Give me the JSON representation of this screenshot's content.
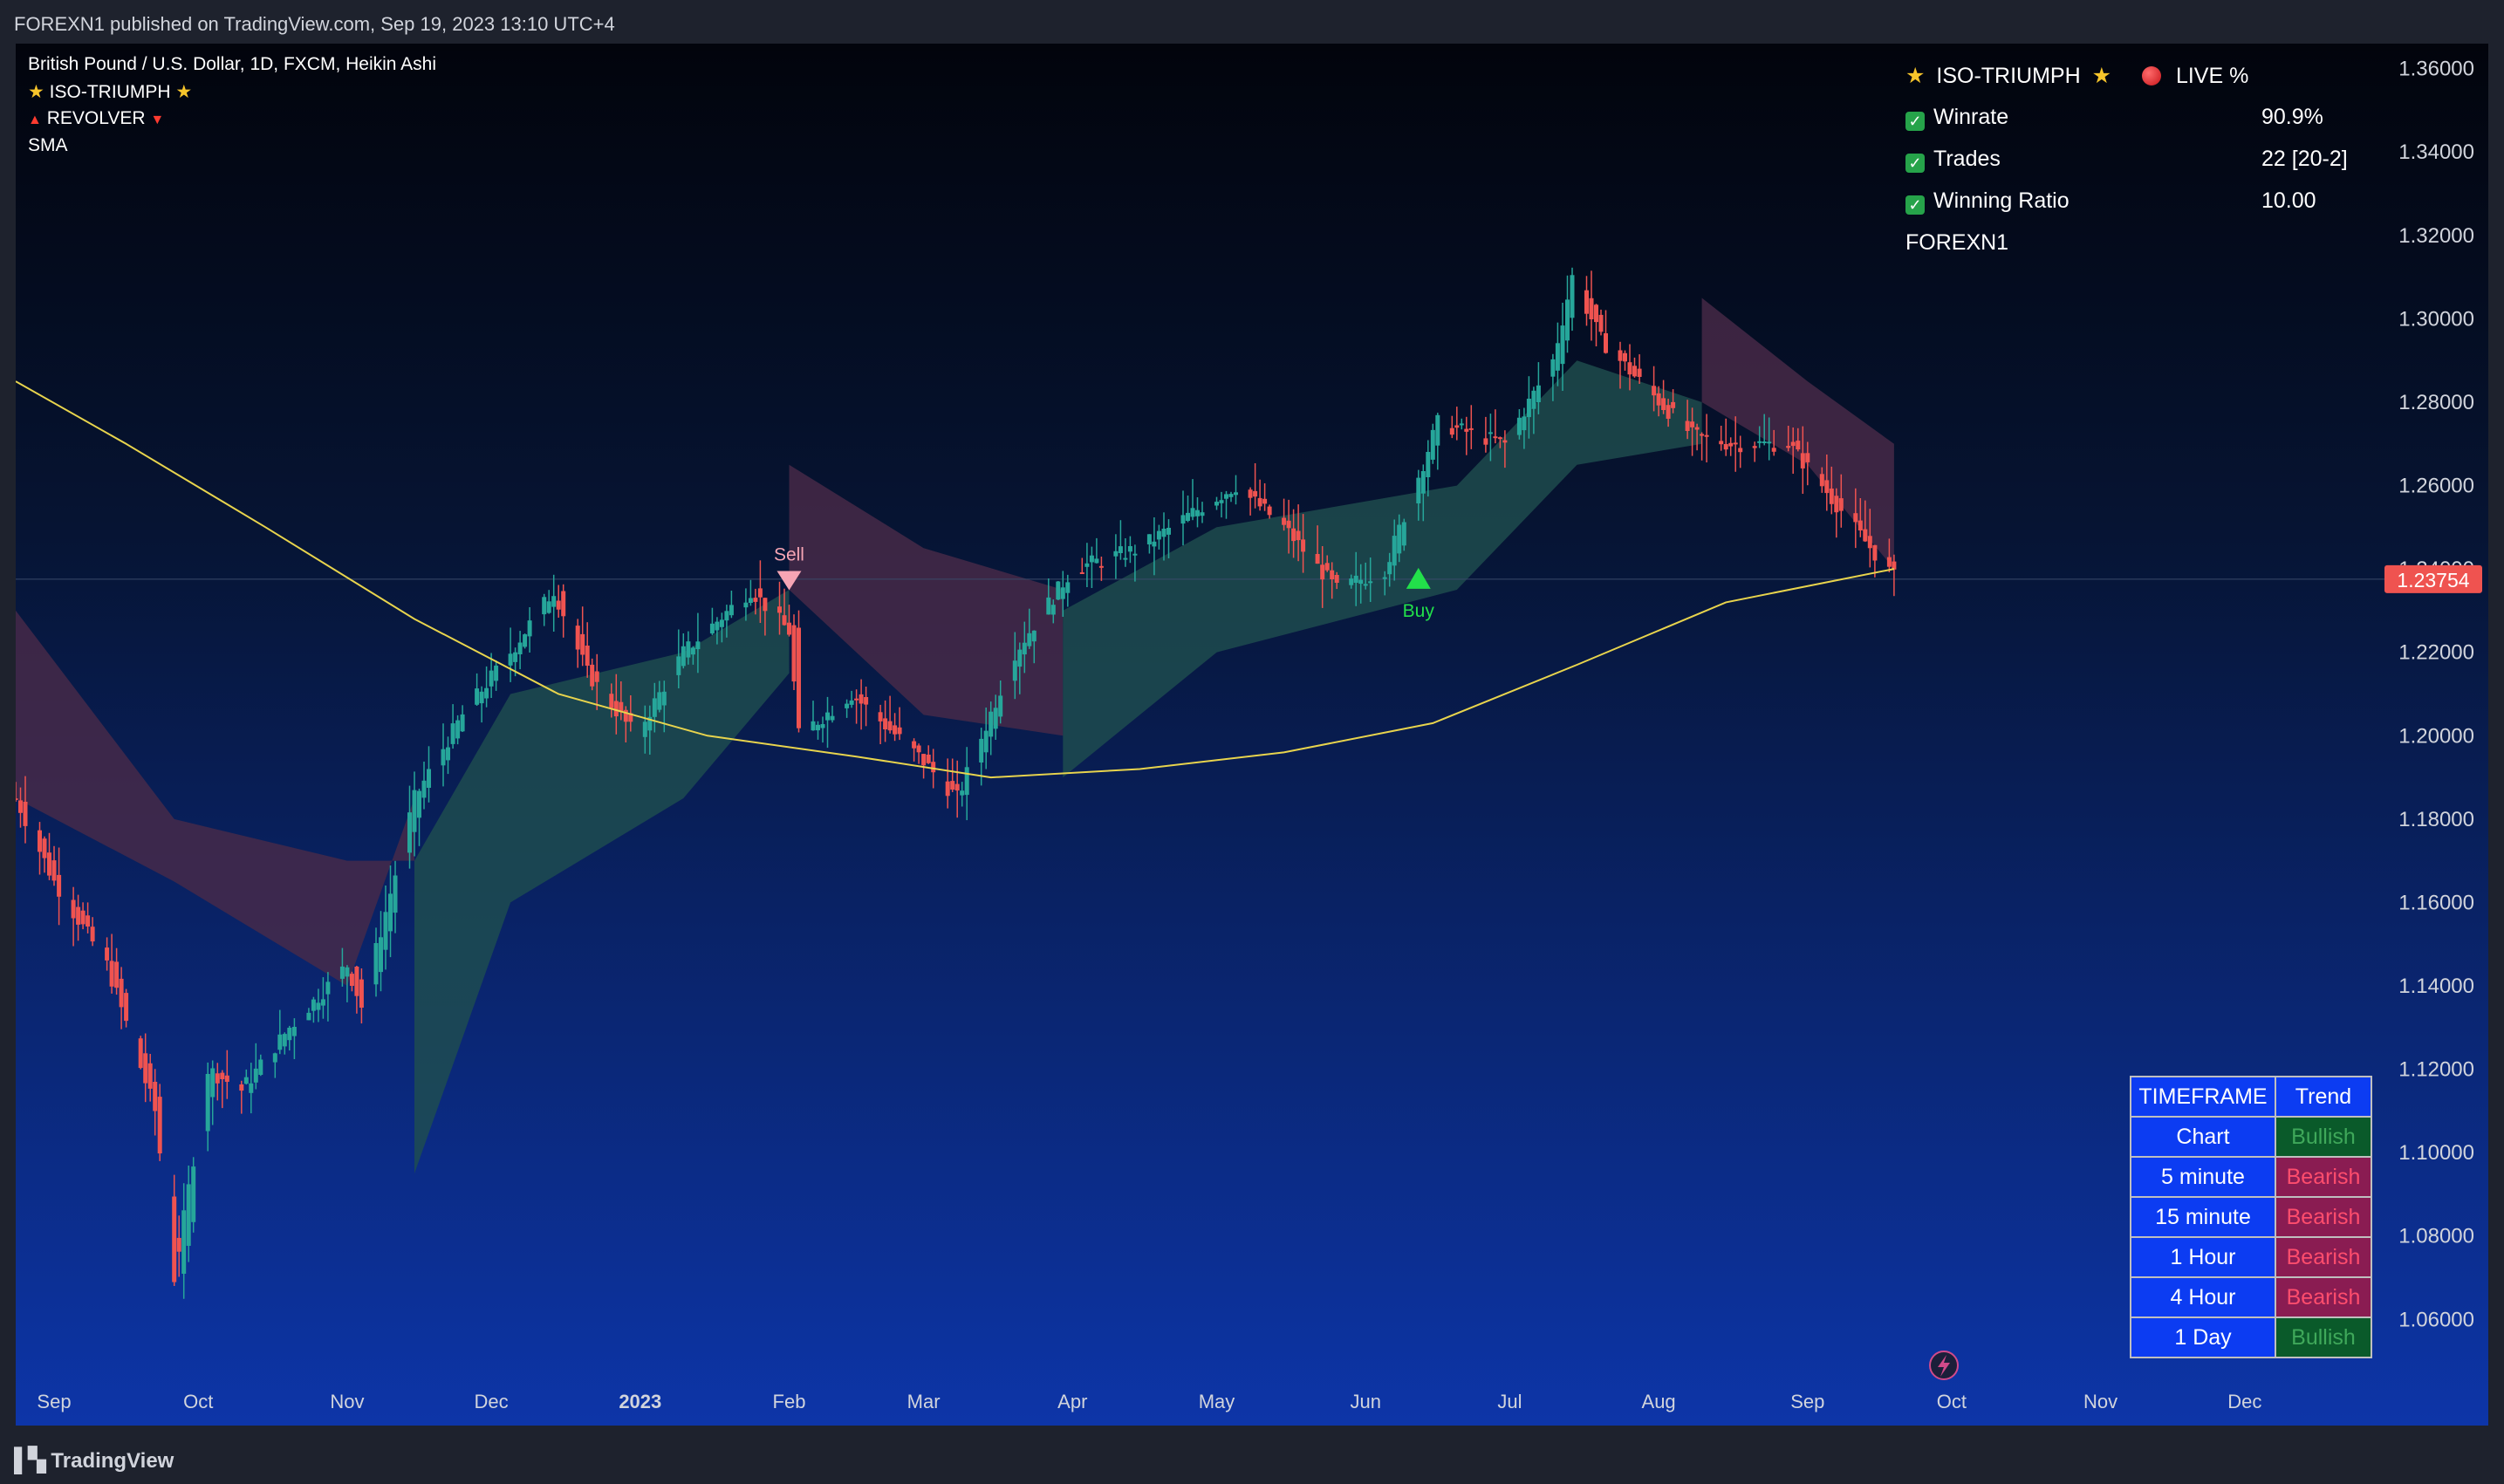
{
  "header": {
    "published": "FOREXN1 published on TradingView.com, Sep 19, 2023 13:10 UTC+4"
  },
  "footer": {
    "brand": "TradingView"
  },
  "legend": {
    "symbol": "British Pound / U.S. Dollar, 1D, FXCM, Heikin Ashi",
    "indicator1": "ISO-TRIUMPH",
    "indicator2": "REVOLVER",
    "indicator3": "SMA"
  },
  "stats": {
    "title": "ISO-TRIUMPH",
    "live": "LIVE %",
    "rows": [
      {
        "label": "Winrate",
        "value": "90.9%"
      },
      {
        "label": "Trades",
        "value": "22 [20-2]"
      },
      {
        "label": "Winning Ratio",
        "value": "10.00"
      }
    ],
    "author": "FOREXN1"
  },
  "timeframe_table": {
    "headers": [
      "TIMEFRAME",
      "Trend"
    ],
    "rows": [
      {
        "tf": "Chart",
        "trend": "Bullish"
      },
      {
        "tf": "5 minute",
        "trend": "Bearish"
      },
      {
        "tf": "15 minute",
        "trend": "Bearish"
      },
      {
        "tf": "1 Hour",
        "trend": "Bearish"
      },
      {
        "tf": "4 Hour",
        "trend": "Bearish"
      },
      {
        "tf": "1 Day",
        "trend": "Bullish"
      }
    ],
    "colors": {
      "header_bg": "#0c3cf2",
      "bull_bg": "#0a5a2a",
      "bull_fg": "#3fa85a",
      "bear_bg": "#8a1c52",
      "bear_fg": "#ff4d6d"
    }
  },
  "colors": {
    "bull": "#26a69a",
    "bear": "#ef5350",
    "sma": "#e8d44d",
    "bull_cloud": "#1f4f4f",
    "bear_cloud": "#4a2a48",
    "price_label_bg": "#ef5350"
  },
  "chart_data": {
    "type": "candlestick",
    "style": "Heikin Ashi",
    "x_labels": [
      "Sep",
      "Oct",
      "Nov",
      "Dec",
      "2023",
      "Feb",
      "Mar",
      "Apr",
      "May",
      "Jun",
      "Jul",
      "Aug",
      "Sep",
      "Oct",
      "Nov",
      "Dec"
    ],
    "y_ticks": [
      "1.36000",
      "1.34000",
      "1.32000",
      "1.30000",
      "1.28000",
      "1.26000",
      "1.24000",
      "1.22000",
      "1.20000",
      "1.18000",
      "1.16000",
      "1.14000",
      "1.12000",
      "1.10000",
      "1.08000",
      "1.06000"
    ],
    "ylim": [
      1.045,
      1.366
    ],
    "last_price": "1.23754",
    "price_path": [
      [
        "2022-08-24",
        1.185
      ],
      [
        "2022-09-01",
        1.165
      ],
      [
        "2022-09-12",
        1.145
      ],
      [
        "2022-09-22",
        1.11
      ],
      [
        "2022-09-26",
        1.07
      ],
      [
        "2022-10-03",
        1.12
      ],
      [
        "2022-10-10",
        1.115
      ],
      [
        "2022-10-20",
        1.13
      ],
      [
        "2022-11-01",
        1.145
      ],
      [
        "2022-11-04",
        1.135
      ],
      [
        "2022-11-15",
        1.185
      ],
      [
        "2022-11-25",
        1.205
      ],
      [
        "2022-12-05",
        1.22
      ],
      [
        "2022-12-14",
        1.235
      ],
      [
        "2022-12-21",
        1.215
      ],
      [
        "2022-12-31",
        1.2
      ],
      [
        "2023-01-10",
        1.22
      ],
      [
        "2023-01-24",
        1.235
      ],
      [
        "2023-02-01",
        1.225
      ],
      [
        "2023-02-03",
        1.2
      ],
      [
        "2023-02-14",
        1.21
      ],
      [
        "2023-02-28",
        1.195
      ],
      [
        "2023-03-08",
        1.185
      ],
      [
        "2023-03-20",
        1.22
      ],
      [
        "2023-04-01",
        1.24
      ],
      [
        "2023-04-15",
        1.245
      ],
      [
        "2023-04-28",
        1.255
      ],
      [
        "2023-05-05",
        1.26
      ],
      [
        "2023-05-15",
        1.25
      ],
      [
        "2023-05-26",
        1.235
      ],
      [
        "2023-06-05",
        1.24
      ],
      [
        "2023-06-16",
        1.275
      ],
      [
        "2023-06-30",
        1.27
      ],
      [
        "2023-07-10",
        1.29
      ],
      [
        "2023-07-14",
        1.31
      ],
      [
        "2023-07-20",
        1.295
      ],
      [
        "2023-07-28",
        1.285
      ],
      [
        "2023-08-08",
        1.272
      ],
      [
        "2023-08-16",
        1.27
      ],
      [
        "2023-08-28",
        1.27
      ],
      [
        "2023-09-04",
        1.26
      ],
      [
        "2023-09-12",
        1.248
      ],
      [
        "2023-09-19",
        1.238
      ]
    ],
    "sma_path": [
      [
        "2022-08-24",
        1.285
      ],
      [
        "2022-09-16",
        1.27
      ],
      [
        "2022-10-15",
        1.25
      ],
      [
        "2022-11-15",
        1.228
      ],
      [
        "2022-12-15",
        1.21
      ],
      [
        "2023-01-15",
        1.2
      ],
      [
        "2023-02-15",
        1.195
      ],
      [
        "2023-03-15",
        1.19
      ],
      [
        "2023-04-15",
        1.192
      ],
      [
        "2023-05-15",
        1.196
      ],
      [
        "2023-06-15",
        1.203
      ],
      [
        "2023-07-15",
        1.217
      ],
      [
        "2023-08-15",
        1.232
      ],
      [
        "2023-09-19",
        1.24
      ]
    ],
    "signals": [
      {
        "label": "Sell",
        "date": "2023-02-01",
        "price": 1.2395,
        "direction": "down"
      },
      {
        "label": "Buy",
        "date": "2023-06-12",
        "price": 1.2365,
        "direction": "up"
      }
    ],
    "clouds": [
      {
        "type": "bear",
        "path": [
          [
            "2022-08-24",
            1.23,
            1.185
          ],
          [
            "2022-09-26",
            1.18,
            1.165
          ],
          [
            "2022-11-01",
            1.17,
            1.14
          ],
          [
            "2022-11-15",
            1.17,
            1.185
          ]
        ]
      },
      {
        "type": "bull",
        "path": [
          [
            "2022-11-15",
            1.095,
            1.17
          ],
          [
            "2022-12-05",
            1.16,
            1.21
          ],
          [
            "2023-01-10",
            1.185,
            1.22
          ],
          [
            "2023-02-01",
            1.215,
            1.235
          ]
        ]
      },
      {
        "type": "bear",
        "path": [
          [
            "2023-02-01",
            1.265,
            1.235
          ],
          [
            "2023-03-01",
            1.245,
            1.205
          ],
          [
            "2023-03-30",
            1.235,
            1.2
          ]
        ]
      },
      {
        "type": "bull",
        "path": [
          [
            "2023-03-30",
            1.19,
            1.23
          ],
          [
            "2023-05-01",
            1.22,
            1.25
          ],
          [
            "2023-06-20",
            1.235,
            1.26
          ],
          [
            "2023-07-15",
            1.265,
            1.29
          ],
          [
            "2023-08-10",
            1.27,
            1.28
          ]
        ]
      },
      {
        "type": "bear",
        "path": [
          [
            "2023-08-10",
            1.305,
            1.28
          ],
          [
            "2023-09-01",
            1.285,
            1.265
          ],
          [
            "2023-09-19",
            1.27,
            1.24
          ]
        ]
      }
    ]
  }
}
